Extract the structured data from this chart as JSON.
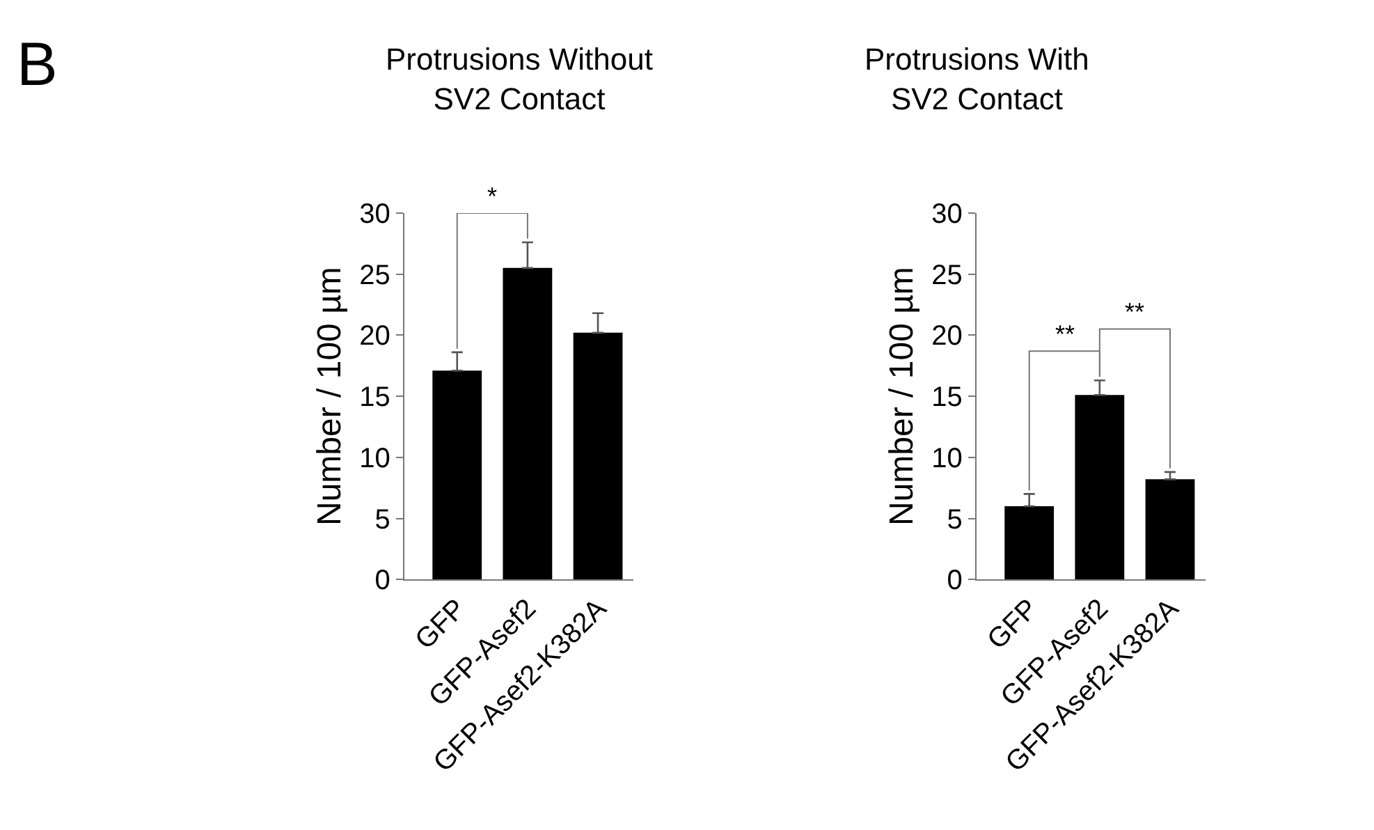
{
  "chart_data": [
    {
      "type": "bar",
      "title": "Protrusions Without\nSV2 Contact",
      "ylabel": "Number / 100 µm",
      "categories": [
        "GFP",
        "GFP-Asef2",
        "GFP-Asef2-K382A"
      ],
      "values": [
        17.1,
        25.5,
        20.2
      ],
      "color": "#000000",
      "errors": [
        [
          17.1,
          18.6
        ],
        [
          25.5,
          27.6
        ],
        [
          20.2,
          21.8
        ]
      ],
      "ylim": [
        0,
        30
      ],
      "yticks": [
        0,
        5,
        10,
        15,
        20,
        25,
        30
      ],
      "grid": false,
      "legend": false,
      "annotations": [
        "B",
        "*"
      ]
    },
    {
      "type": "bar",
      "title": "Protrusions With\nSV2 Contact",
      "ylabel": "Number / 100 µm",
      "categories": [
        "GFP",
        "GFP-Asef2",
        "GFP-Asef2-K382A"
      ],
      "values": [
        6.0,
        15.1,
        8.2
      ],
      "color": "#000000",
      "errors": [
        [
          6.0,
          7.0
        ],
        [
          15.1,
          16.3
        ],
        [
          8.2,
          8.8
        ]
      ],
      "ylim": [
        0,
        30
      ],
      "yticks": [
        0,
        5,
        10,
        15,
        20,
        25,
        30
      ],
      "grid": false,
      "legend": false,
      "annotations": [
        "**",
        "**"
      ]
    }
  ]
}
